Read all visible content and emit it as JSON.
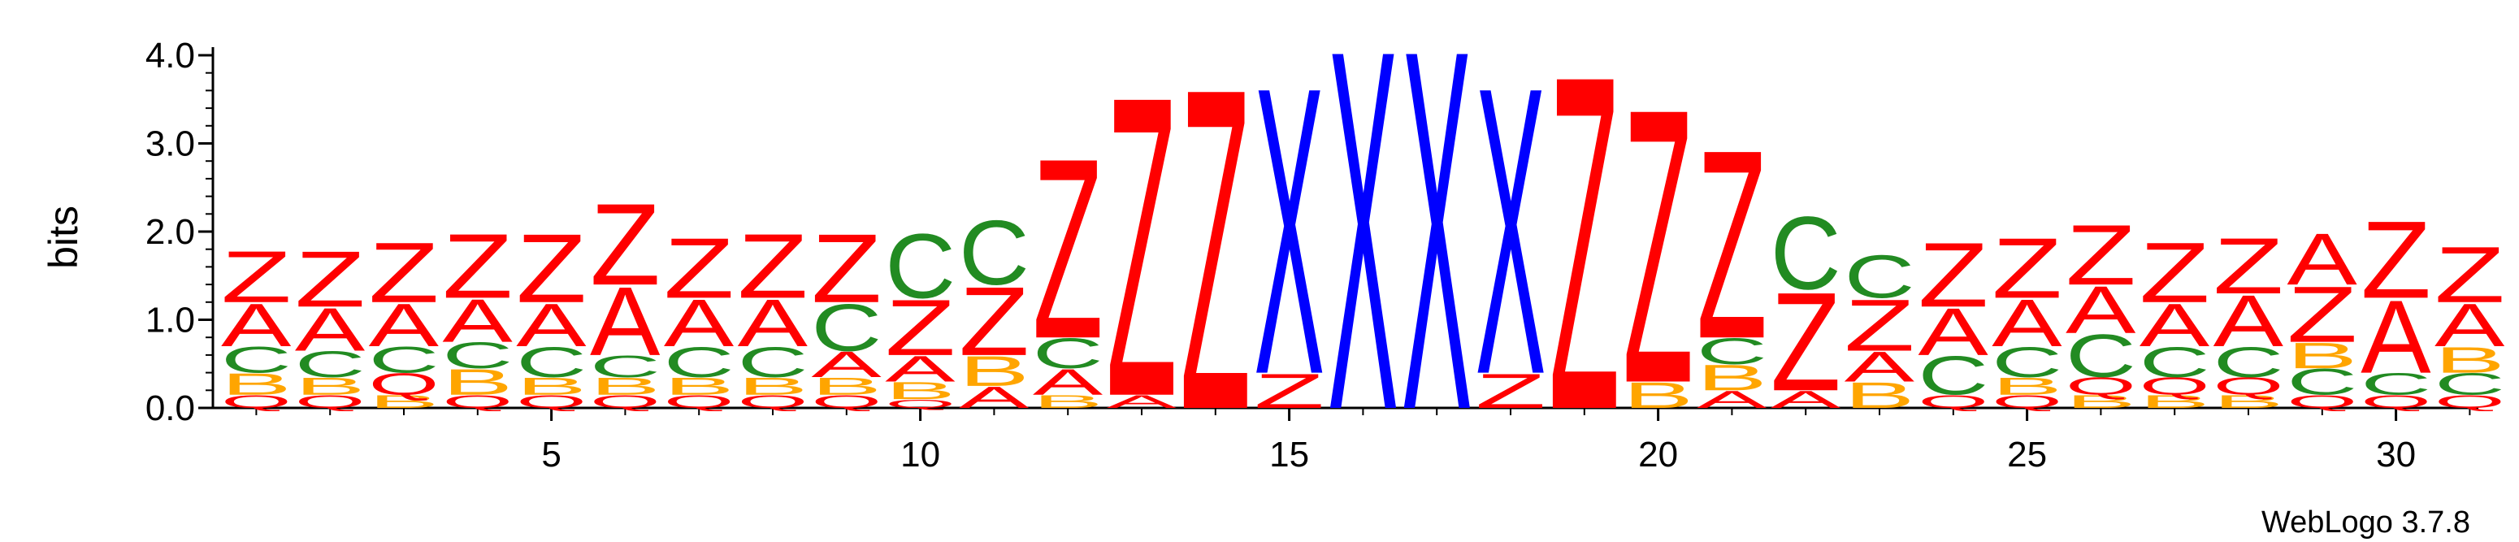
{
  "chart_data": {
    "type": "sequence-logo",
    "ylabel": "bits",
    "ylim": [
      0,
      4
    ],
    "y_ticks": [
      "0.0",
      "1.0",
      "2.0",
      "3.0",
      "4.0"
    ],
    "x_ticks": [
      5,
      10,
      15,
      20,
      25,
      30
    ],
    "footer": "WebLogo 3.7.8",
    "colors": {
      "Z": "#ff0000",
      "A": "#ff0000",
      "C": "#228b22",
      "B": "#ffa500",
      "Q": "#ff0000",
      "X": "#0000ff"
    },
    "positions": [
      {
        "pos": 1,
        "stack": [
          [
            "Q",
            0.15
          ],
          [
            "B",
            0.25
          ],
          [
            "C",
            0.3
          ],
          [
            "A",
            0.5
          ],
          [
            "Z",
            0.6
          ]
        ]
      },
      {
        "pos": 2,
        "stack": [
          [
            "Q",
            0.15
          ],
          [
            "B",
            0.2
          ],
          [
            "C",
            0.3
          ],
          [
            "A",
            0.5
          ],
          [
            "Z",
            0.65
          ]
        ]
      },
      {
        "pos": 3,
        "stack": [
          [
            "B",
            0.15
          ],
          [
            "Q",
            0.25
          ],
          [
            "C",
            0.3
          ],
          [
            "A",
            0.5
          ],
          [
            "Z",
            0.7
          ]
        ]
      },
      {
        "pos": 4,
        "stack": [
          [
            "Q",
            0.15
          ],
          [
            "B",
            0.3
          ],
          [
            "C",
            0.3
          ],
          [
            "A",
            0.5
          ],
          [
            "Z",
            0.75
          ]
        ]
      },
      {
        "pos": 5,
        "stack": [
          [
            "Q",
            0.15
          ],
          [
            "B",
            0.2
          ],
          [
            "C",
            0.35
          ],
          [
            "A",
            0.5
          ],
          [
            "Z",
            0.8
          ]
        ]
      },
      {
        "pos": 6,
        "stack": [
          [
            "Q",
            0.15
          ],
          [
            "B",
            0.2
          ],
          [
            "C",
            0.25
          ],
          [
            "A",
            0.8
          ],
          [
            "Z",
            0.95
          ]
        ]
      },
      {
        "pos": 7,
        "stack": [
          [
            "Q",
            0.15
          ],
          [
            "B",
            0.2
          ],
          [
            "C",
            0.35
          ],
          [
            "A",
            0.55
          ],
          [
            "Z",
            0.7
          ]
        ]
      },
      {
        "pos": 8,
        "stack": [
          [
            "Q",
            0.15
          ],
          [
            "B",
            0.2
          ],
          [
            "C",
            0.35
          ],
          [
            "A",
            0.55
          ],
          [
            "Z",
            0.75
          ]
        ]
      },
      {
        "pos": 9,
        "stack": [
          [
            "Q",
            0.15
          ],
          [
            "B",
            0.2
          ],
          [
            "A",
            0.3
          ],
          [
            "C",
            0.55
          ],
          [
            "Z",
            0.8
          ]
        ]
      },
      {
        "pos": 10,
        "stack": [
          [
            "Q",
            0.1
          ],
          [
            "B",
            0.2
          ],
          [
            "A",
            0.3
          ],
          [
            "Z",
            0.65
          ],
          [
            "C",
            0.75
          ]
        ]
      },
      {
        "pos": 11,
        "stack": [
          [
            "A",
            0.25
          ],
          [
            "B",
            0.35
          ],
          [
            "Z",
            0.8
          ],
          [
            "C",
            0.75
          ]
        ]
      },
      {
        "pos": 12,
        "stack": [
          [
            "B",
            0.15
          ],
          [
            "A",
            0.3
          ],
          [
            "C",
            0.35
          ],
          [
            "Z",
            2.1
          ]
        ]
      },
      {
        "pos": 13,
        "stack": [
          [
            "A",
            0.15
          ],
          [
            "Z",
            3.5
          ]
        ]
      },
      {
        "pos": 14,
        "stack": [
          [
            "Z",
            3.75
          ]
        ]
      },
      {
        "pos": 15,
        "stack": [
          [
            "Z",
            0.4
          ],
          [
            "X",
            3.35
          ]
        ]
      },
      {
        "pos": 16,
        "stack": [
          [
            "X",
            4.2
          ]
        ]
      },
      {
        "pos": 17,
        "stack": [
          [
            "X",
            4.2
          ]
        ]
      },
      {
        "pos": 18,
        "stack": [
          [
            "Z",
            0.4
          ],
          [
            "X",
            3.35
          ]
        ]
      },
      {
        "pos": 19,
        "stack": [
          [
            "Z",
            3.9
          ]
        ]
      },
      {
        "pos": 20,
        "stack": [
          [
            "B",
            0.3
          ],
          [
            "Z",
            3.2
          ]
        ]
      },
      {
        "pos": 21,
        "stack": [
          [
            "A",
            0.2
          ],
          [
            "B",
            0.3
          ],
          [
            "C",
            0.3
          ],
          [
            "Z",
            2.2
          ]
        ]
      },
      {
        "pos": 22,
        "stack": [
          [
            "A",
            0.2
          ],
          [
            "Z",
            1.15
          ],
          [
            "C",
            0.85
          ]
        ]
      },
      {
        "pos": 23,
        "stack": [
          [
            "B",
            0.3
          ],
          [
            "A",
            0.35
          ],
          [
            "Z",
            0.6
          ],
          [
            "C",
            0.5
          ]
        ]
      },
      {
        "pos": 24,
        "stack": [
          [
            "Q",
            0.15
          ],
          [
            "C",
            0.45
          ],
          [
            "A",
            0.55
          ],
          [
            "Z",
            0.75
          ]
        ]
      },
      {
        "pos": 25,
        "stack": [
          [
            "Q",
            0.15
          ],
          [
            "B",
            0.2
          ],
          [
            "C",
            0.35
          ],
          [
            "A",
            0.55
          ],
          [
            "Z",
            0.7
          ]
        ]
      },
      {
        "pos": 26,
        "stack": [
          [
            "B",
            0.15
          ],
          [
            "Q",
            0.2
          ],
          [
            "C",
            0.5
          ],
          [
            "A",
            0.55
          ],
          [
            "Z",
            0.7
          ]
        ]
      },
      {
        "pos": 27,
        "stack": [
          [
            "B",
            0.15
          ],
          [
            "Q",
            0.2
          ],
          [
            "C",
            0.35
          ],
          [
            "A",
            0.5
          ],
          [
            "Z",
            0.7
          ]
        ]
      },
      {
        "pos": 28,
        "stack": [
          [
            "B",
            0.15
          ],
          [
            "Q",
            0.2
          ],
          [
            "C",
            0.35
          ],
          [
            "A",
            0.6
          ],
          [
            "Z",
            0.65
          ]
        ]
      },
      {
        "pos": 29,
        "stack": [
          [
            "Q",
            0.15
          ],
          [
            "C",
            0.3
          ],
          [
            "B",
            0.3
          ],
          [
            "Z",
            0.65
          ],
          [
            "A",
            0.6
          ]
        ]
      },
      {
        "pos": 30,
        "stack": [
          [
            "Q",
            0.15
          ],
          [
            "C",
            0.25
          ],
          [
            "A",
            0.85
          ],
          [
            "Z",
            0.9
          ]
        ]
      },
      {
        "pos": 31,
        "stack": [
          [
            "Q",
            0.15
          ],
          [
            "C",
            0.25
          ],
          [
            "B",
            0.3
          ],
          [
            "A",
            0.5
          ],
          [
            "Z",
            0.65
          ]
        ]
      }
    ]
  }
}
